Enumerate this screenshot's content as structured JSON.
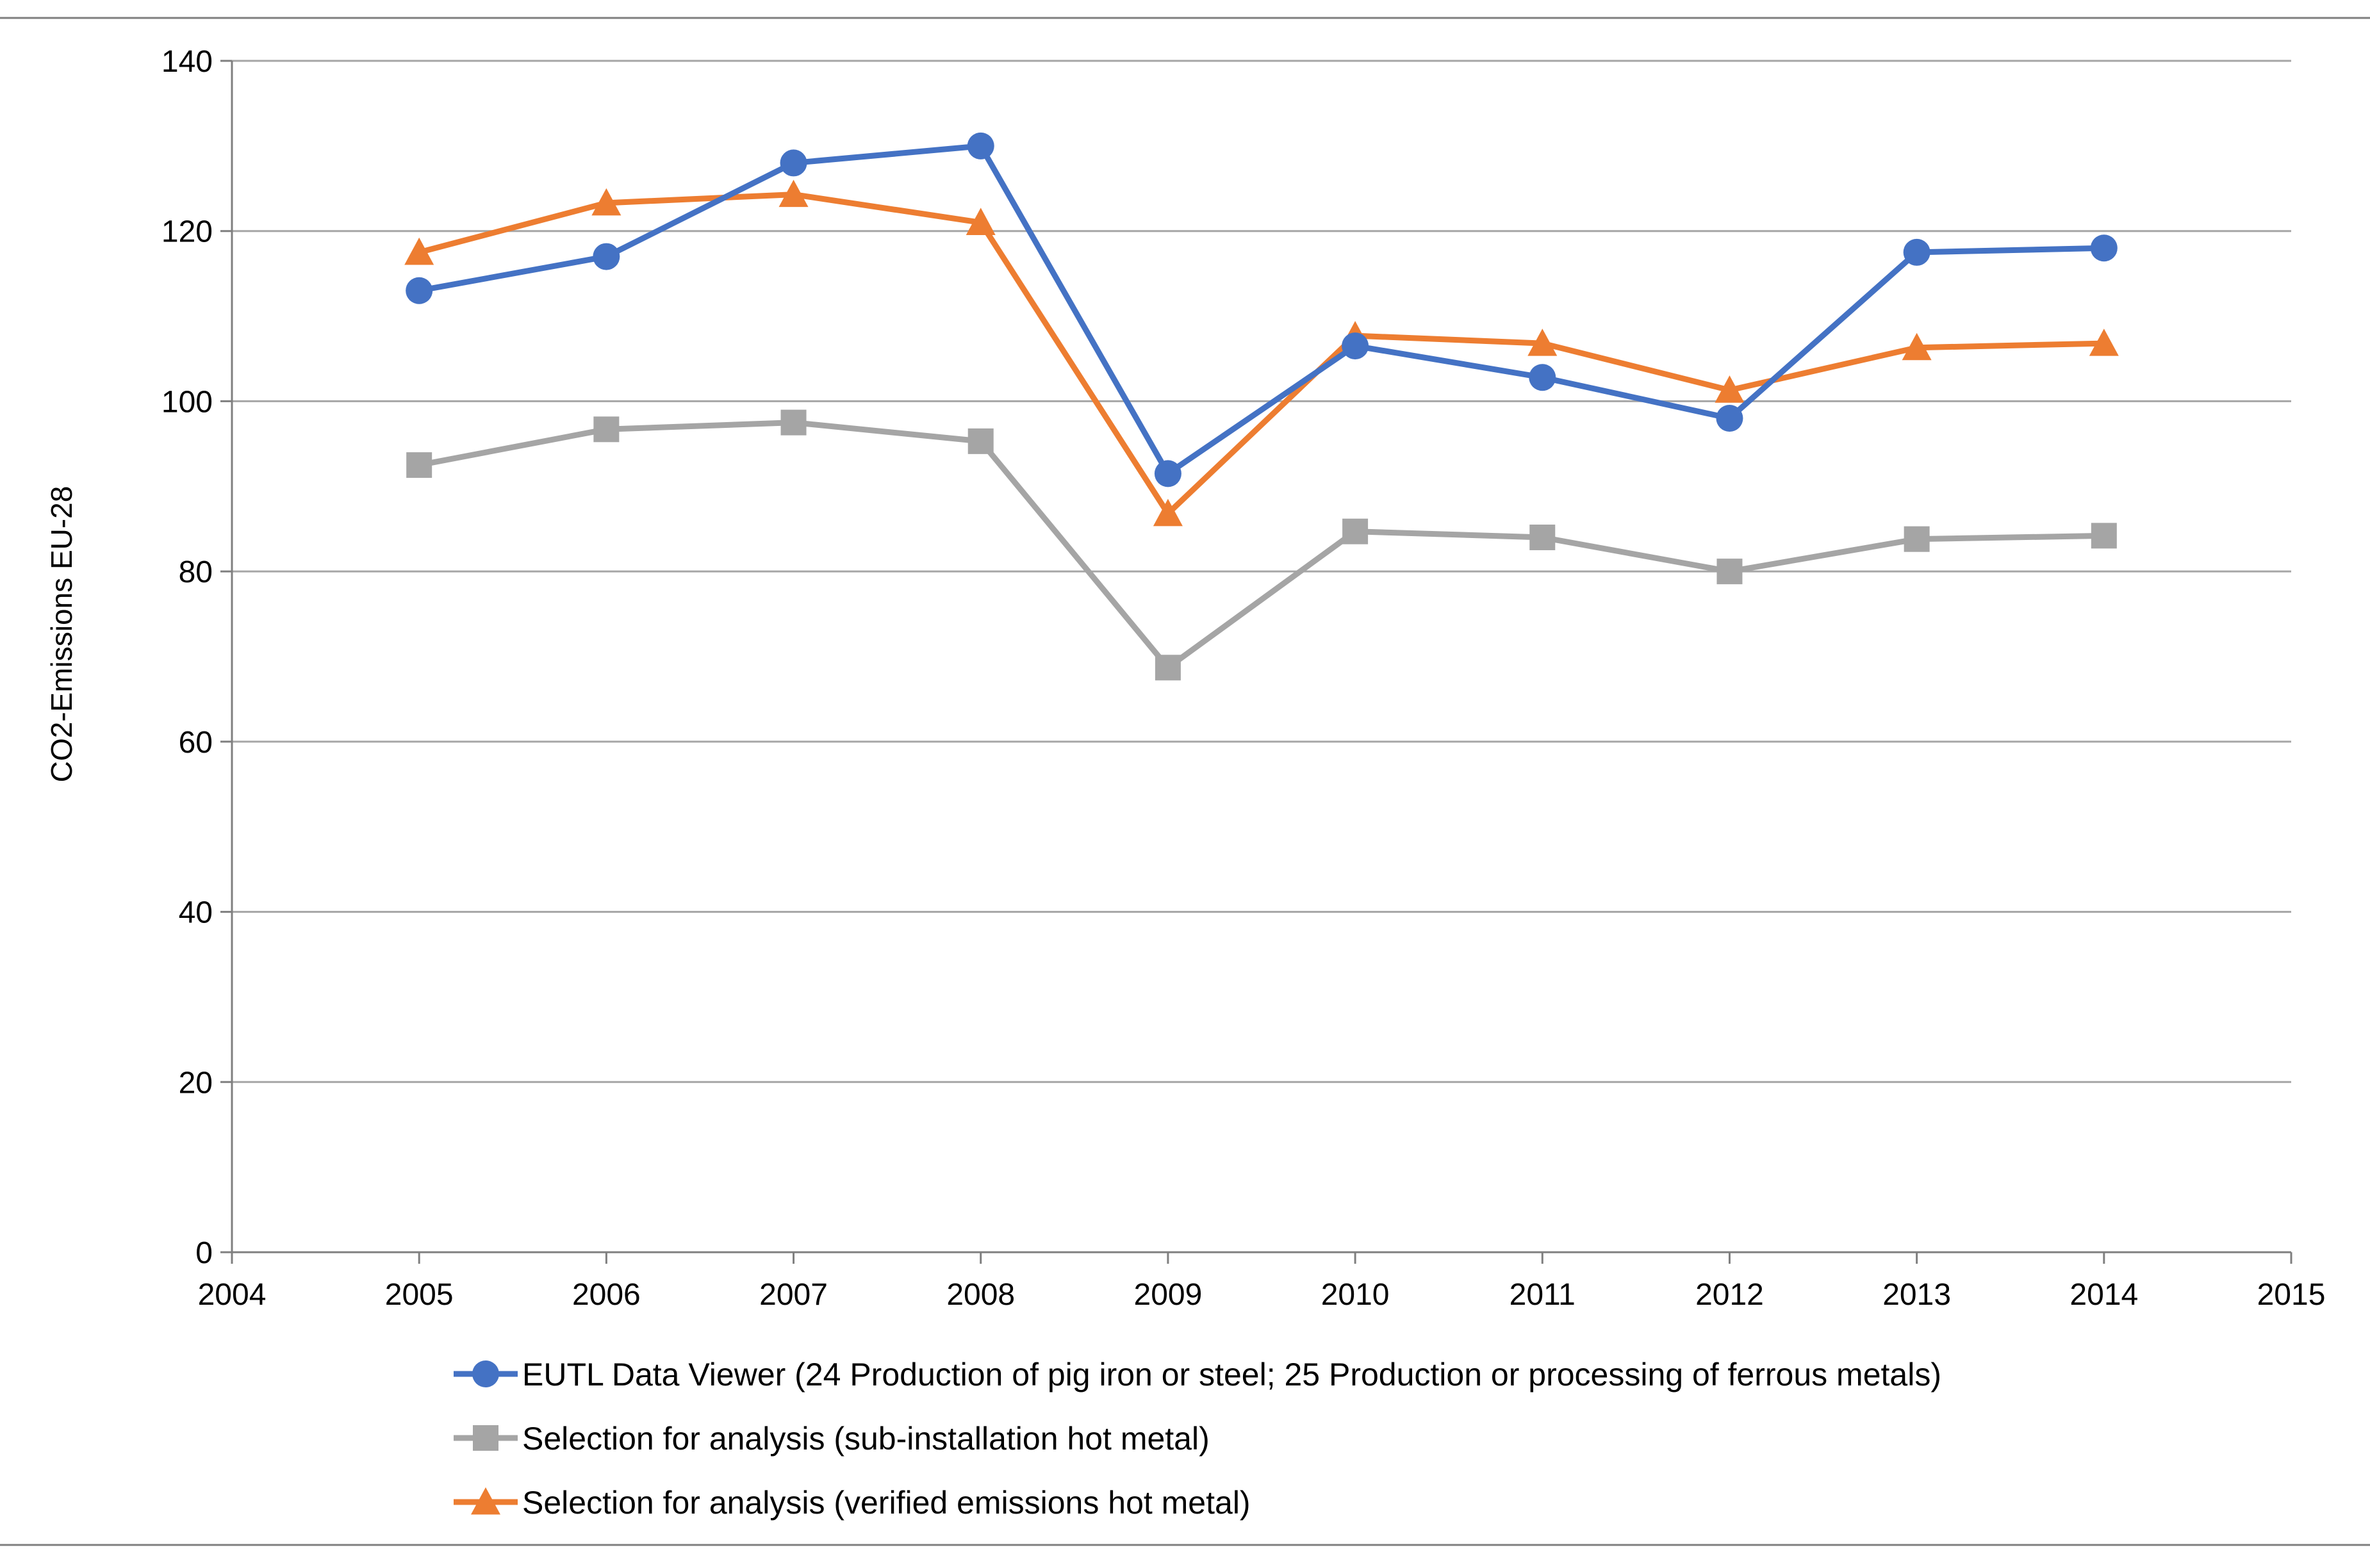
{
  "chart_data": {
    "type": "line",
    "title": "",
    "xlabel": "",
    "ylabel": "CO2-Emissions EU-28",
    "xlim": [
      2004,
      2015
    ],
    "ylim": [
      0,
      140
    ],
    "x_ticks": [
      2004,
      2005,
      2006,
      2007,
      2008,
      2009,
      2010,
      2011,
      2012,
      2013,
      2014,
      2015
    ],
    "y_ticks": [
      0,
      20,
      40,
      60,
      80,
      100,
      120,
      140
    ],
    "grid": "horizontal",
    "legend_position": "bottom",
    "x": [
      2005,
      2006,
      2007,
      2008,
      2009,
      2010,
      2011,
      2012,
      2013,
      2014
    ],
    "series": [
      {
        "name": "EUTL Data Viewer (24 Production of pig iron or steel; 25 Production or processing of ferrous metals)",
        "color": "#4472C4",
        "marker": "circle",
        "values": [
          113,
          117,
          128,
          130,
          91.5,
          106.5,
          102.8,
          98,
          117.5,
          118
        ]
      },
      {
        "name": "Selection for analysis (sub-installation hot metal)",
        "color": "#A5A5A5",
        "marker": "square",
        "values": [
          92.5,
          96.7,
          97.5,
          95.3,
          68.7,
          84.7,
          84,
          80,
          83.8,
          84.2
        ]
      },
      {
        "name": "Selection for analysis (verified emissions hot metal)",
        "color": "#ED7D31",
        "marker": "triangle",
        "values": [
          117.5,
          123.3,
          124.3,
          121,
          86.8,
          107.7,
          106.8,
          101.3,
          106.3,
          106.8
        ]
      }
    ]
  }
}
